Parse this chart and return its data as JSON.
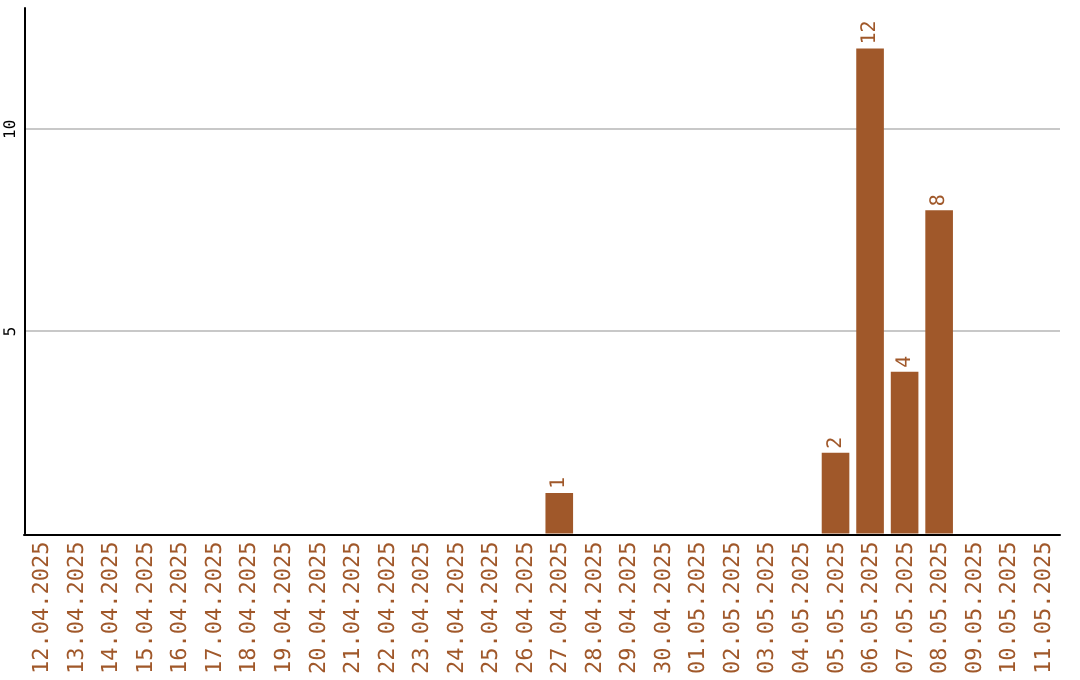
{
  "chart_data": {
    "type": "bar",
    "categories": [
      "12.04.2025",
      "13.04.2025",
      "14.04.2025",
      "15.04.2025",
      "16.04.2025",
      "17.04.2025",
      "18.04.2025",
      "19.04.2025",
      "20.04.2025",
      "21.04.2025",
      "22.04.2025",
      "23.04.2025",
      "24.04.2025",
      "25.04.2025",
      "26.04.2025",
      "27.04.2025",
      "28.04.2025",
      "29.04.2025",
      "30.04.2025",
      "01.05.2025",
      "02.05.2025",
      "03.05.2025",
      "04.05.2025",
      "05.05.2025",
      "06.05.2025",
      "07.05.2025",
      "08.05.2025",
      "09.05.2025",
      "10.05.2025",
      "11.05.2025"
    ],
    "values": [
      0,
      0,
      0,
      0,
      0,
      0,
      0,
      0,
      0,
      0,
      0,
      0,
      0,
      0,
      0,
      1,
      0,
      0,
      0,
      0,
      0,
      0,
      0,
      2,
      12,
      4,
      8,
      0,
      0,
      0
    ],
    "value_labels": [
      null,
      null,
      null,
      null,
      null,
      null,
      null,
      null,
      null,
      null,
      null,
      null,
      null,
      null,
      null,
      "1",
      null,
      null,
      null,
      null,
      null,
      null,
      null,
      "2",
      "12",
      "4",
      "8",
      null,
      null,
      null
    ],
    "color": "#a0582a",
    "ylim": [
      0,
      13
    ],
    "yticks": [
      5,
      10
    ],
    "grid": "y"
  }
}
